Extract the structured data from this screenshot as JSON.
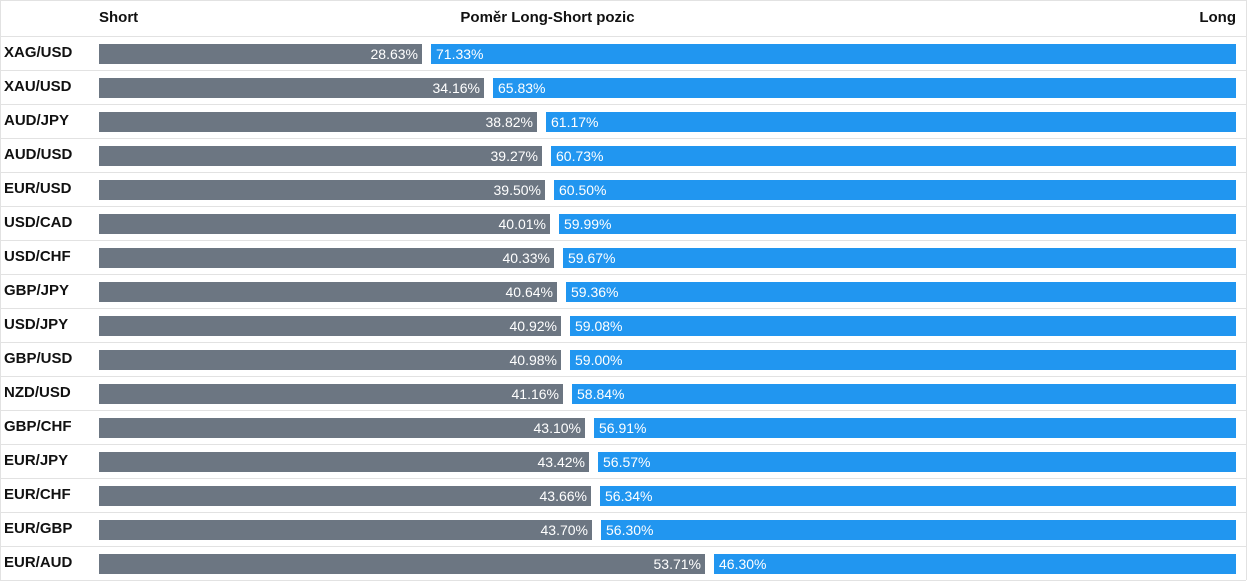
{
  "chart_data": {
    "type": "bar",
    "title": "Poměr Long-Short pozic",
    "left_header": "Short",
    "right_header": "Long",
    "colors": {
      "short": "#6c7682",
      "long": "#2196f0"
    },
    "rows": [
      {
        "pair": "XAG/USD",
        "short": 28.63,
        "long": 71.33,
        "short_label": "28.63%",
        "long_label": "71.33%"
      },
      {
        "pair": "XAU/USD",
        "short": 34.16,
        "long": 65.83,
        "short_label": "34.16%",
        "long_label": "65.83%"
      },
      {
        "pair": "AUD/JPY",
        "short": 38.82,
        "long": 61.17,
        "short_label": "38.82%",
        "long_label": "61.17%"
      },
      {
        "pair": "AUD/USD",
        "short": 39.27,
        "long": 60.73,
        "short_label": "39.27%",
        "long_label": "60.73%"
      },
      {
        "pair": "EUR/USD",
        "short": 39.5,
        "long": 60.5,
        "short_label": "39.50%",
        "long_label": "60.50%"
      },
      {
        "pair": "USD/CAD",
        "short": 40.01,
        "long": 59.99,
        "short_label": "40.01%",
        "long_label": "59.99%"
      },
      {
        "pair": "USD/CHF",
        "short": 40.33,
        "long": 59.67,
        "short_label": "40.33%",
        "long_label": "59.67%"
      },
      {
        "pair": "GBP/JPY",
        "short": 40.64,
        "long": 59.36,
        "short_label": "40.64%",
        "long_label": "59.36%"
      },
      {
        "pair": "USD/JPY",
        "short": 40.92,
        "long": 59.08,
        "short_label": "40.92%",
        "long_label": "59.08%"
      },
      {
        "pair": "GBP/USD",
        "short": 40.98,
        "long": 59.0,
        "short_label": "40.98%",
        "long_label": "59.00%"
      },
      {
        "pair": "NZD/USD",
        "short": 41.16,
        "long": 58.84,
        "short_label": "41.16%",
        "long_label": "58.84%"
      },
      {
        "pair": "GBP/CHF",
        "short": 43.1,
        "long": 56.91,
        "short_label": "43.10%",
        "long_label": "56.91%"
      },
      {
        "pair": "EUR/JPY",
        "short": 43.42,
        "long": 56.57,
        "short_label": "43.42%",
        "long_label": "56.57%"
      },
      {
        "pair": "EUR/CHF",
        "short": 43.66,
        "long": 56.34,
        "short_label": "43.66%",
        "long_label": "56.34%"
      },
      {
        "pair": "EUR/GBP",
        "short": 43.7,
        "long": 56.3,
        "short_label": "43.70%",
        "long_label": "56.30%"
      },
      {
        "pair": "EUR/AUD",
        "short": 53.71,
        "long": 46.3,
        "short_label": "53.71%",
        "long_label": "46.30%"
      }
    ]
  }
}
